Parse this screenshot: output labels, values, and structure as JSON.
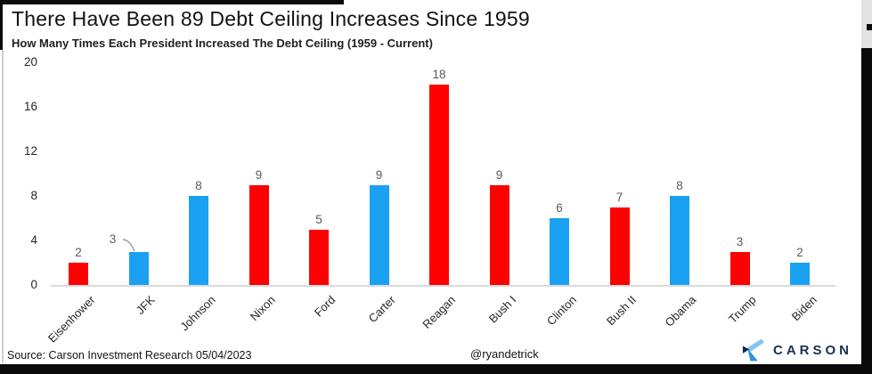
{
  "title": "There Have Been 89 Debt Ceiling Increases Since 1959",
  "subtitle": "How Many Times Each President Increased The Debt Ceiling (1959 - Current)",
  "footer": {
    "source": "Source: Carson Investment Research 05/04/2023",
    "handle": "@ryandetrick",
    "brand": "CARSON"
  },
  "colors": {
    "republican_red": "#fe0000",
    "democrat_blue": "#1ba1f2",
    "value_label_gray": "#595959",
    "brand_navy": "#16304f",
    "brand_light_blue": "#85c6f0",
    "brand_mid_blue": "#2a93dd"
  },
  "chart_data": {
    "type": "bar",
    "title": "There Have Been 89 Debt Ceiling Increases Since 1959",
    "subtitle": "How Many Times Each President Increased The Debt Ceiling (1959 - Current)",
    "categories": [
      "Eisenhower",
      "JFK",
      "Johnson",
      "Nixon",
      "Ford",
      "Carter",
      "Reagan",
      "Bush I",
      "Clinton",
      "Bush II",
      "Obama",
      "Trump",
      "Biden"
    ],
    "values": [
      2,
      3,
      8,
      9,
      5,
      9,
      18,
      9,
      6,
      7,
      8,
      3,
      2
    ],
    "parties": [
      "R",
      "D",
      "D",
      "R",
      "R",
      "D",
      "R",
      "R",
      "D",
      "R",
      "D",
      "R",
      "D"
    ],
    "party_colors": {
      "R": "#fe0000",
      "D": "#1ba1f2"
    },
    "total": 89,
    "ylim": [
      0,
      20
    ],
    "yticks": [
      0,
      4,
      8,
      12,
      16,
      20
    ],
    "grid": false,
    "legend": false,
    "value_labels": true,
    "annotation": {
      "category": "JFK",
      "type": "leader-line-to-label"
    }
  }
}
